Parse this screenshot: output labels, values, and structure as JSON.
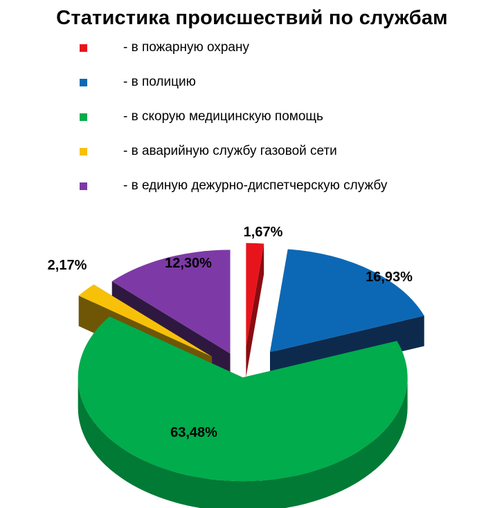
{
  "title": "Статистика происшествий по службам",
  "legend": [
    {
      "label": "- в пожарную охрану",
      "color": "#e8141c"
    },
    {
      "label": "- в полицию",
      "color": "#0c68b5"
    },
    {
      "label": "- в скорую медицинскую помощь",
      "color": "#00ac4c"
    },
    {
      "label": "- в аварийную  службу газовой сети",
      "color": "#f7c10a"
    },
    {
      "label": "- в единую дежурно-диспетчерскую службу",
      "color": "#7d3aa6"
    }
  ],
  "chart_data": {
    "type": "pie",
    "style": "3d-exploded",
    "title": "Статистика происшествий по службам",
    "slices": [
      {
        "name": "- в пожарную охрану",
        "value": 1.67,
        "label": "1,67%",
        "color": "#e8141c",
        "side_color": "#8a0c10"
      },
      {
        "name": "- в полицию",
        "value": 16.93,
        "label": "16,93%",
        "color": "#0c68b5",
        "side_color": "#0d2a4d"
      },
      {
        "name": "- в скорую медицинскую помощь",
        "value": 63.48,
        "label": "63,48%",
        "color": "#00ac4c",
        "side_color": "#007a35"
      },
      {
        "name": "- в аварийную  службу газовой сети",
        "value": 2.17,
        "label": "2,17%",
        "color": "#f7c10a",
        "side_color": "#6e5606"
      },
      {
        "name": "- в единую дежурно-диспетчерскую службу",
        "value": 12.3,
        "label": "12,30%",
        "color": "#7d3aa6",
        "side_color": "#2f1840"
      }
    ],
    "legend_position": "top"
  }
}
